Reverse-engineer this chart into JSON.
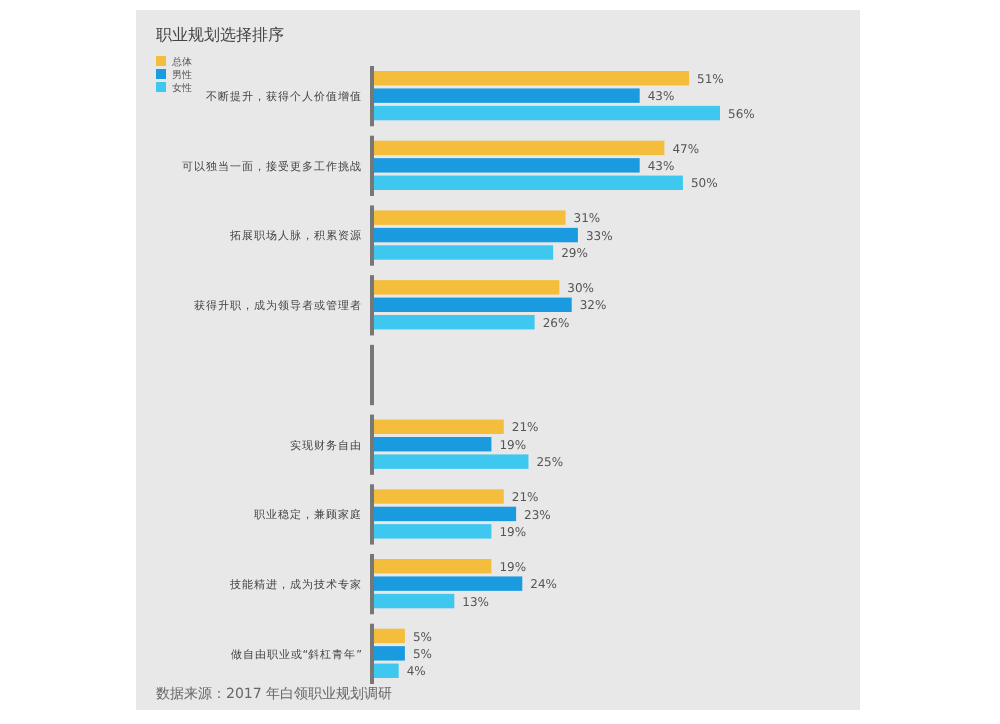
{
  "chart_data": {
    "type": "bar",
    "orientation": "horizontal",
    "title": "职业规划选择排序",
    "categories": [
      "不断提升，获得个人价值增值",
      "可以独当一面，接受更多工作挑战",
      "拓展职场人脉，积累资源",
      "获得升职，成为领导者或管理者",
      null,
      "实现财务自由",
      "职业稳定，兼顾家庭",
      "技能精进，成为技术专家",
      "做自由职业或“斜杠青年”"
    ],
    "series": [
      {
        "name": "总体",
        "color": "#f5bd3c",
        "values": [
          51,
          47,
          31,
          30,
          null,
          21,
          21,
          19,
          5
        ],
        "value_labels": [
          "51%",
          "47%",
          "31%",
          "30%",
          null,
          "21%",
          "21%",
          "19%",
          "5%"
        ]
      },
      {
        "name": "男性",
        "color": "#1a9be0",
        "values": [
          43,
          43,
          33,
          32,
          null,
          19,
          23,
          24,
          5
        ],
        "value_labels": [
          "43%",
          "43%",
          "33%",
          "32%",
          null,
          "19%",
          "23%",
          "24%",
          "5%"
        ]
      },
      {
        "name": "女性",
        "color": "#3ec8f0",
        "values": [
          56,
          50,
          29,
          26,
          null,
          25,
          19,
          13,
          4
        ],
        "value_labels": [
          "56%",
          "50%",
          "29%",
          "26%",
          null,
          "25%",
          "19%",
          "13%",
          "4%"
        ]
      }
    ],
    "legend": "top left",
    "annotations": [
      "数据来源：2017 年白领职业规划调研"
    ]
  }
}
